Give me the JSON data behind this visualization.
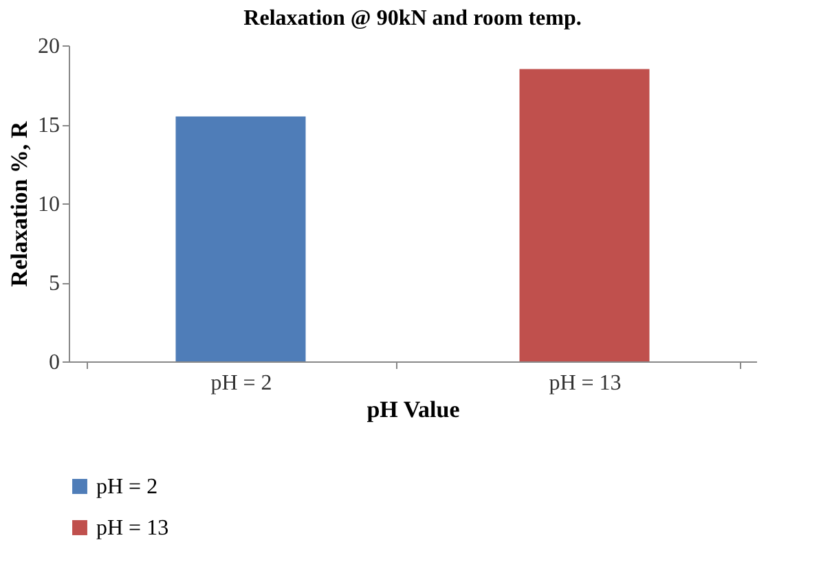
{
  "chart_data": {
    "type": "bar",
    "title": "Relaxation @ 90kN and room temp.",
    "xlabel": "pH Value",
    "ylabel": "Relaxation %, R",
    "categories": [
      "pH = 2",
      "pH = 13"
    ],
    "series": [
      {
        "name": "pH = 2",
        "color": "#4f7db8",
        "values": [
          15.5,
          null
        ]
      },
      {
        "name": "pH = 13",
        "color": "#c0504d",
        "values": [
          null,
          18.5
        ]
      }
    ],
    "ylim": [
      0,
      20
    ],
    "yticks": [
      0,
      5,
      10,
      15,
      20
    ],
    "grid": false,
    "legend": "bottom"
  }
}
